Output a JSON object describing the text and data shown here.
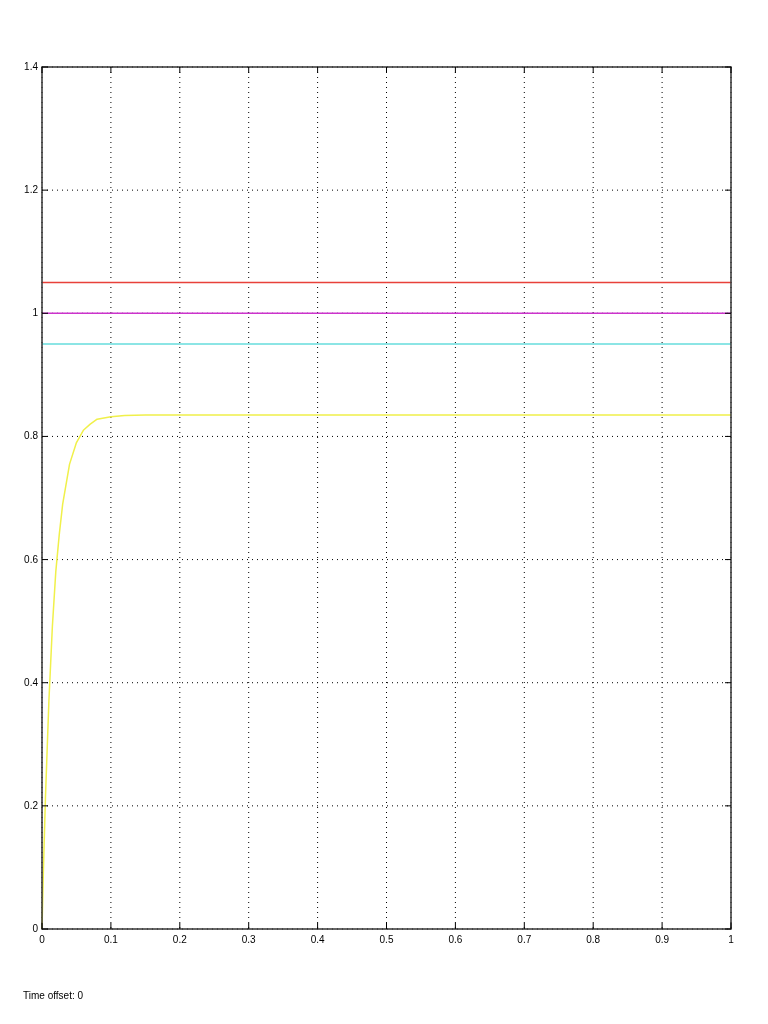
{
  "chart_data": {
    "type": "line",
    "xlim": [
      0,
      1
    ],
    "ylim": [
      0,
      1.4
    ],
    "xticks": [
      0,
      0.1,
      0.2,
      0.3,
      0.4,
      0.5,
      0.6,
      0.7,
      0.8,
      0.9,
      1
    ],
    "yticks": [
      0,
      0.2,
      0.4,
      0.6,
      0.8,
      1,
      1.2,
      1.4
    ],
    "grid": true,
    "line_style": "solid",
    "series": [
      {
        "color": "#e8413a",
        "x": [
          0,
          1
        ],
        "values": [
          1.05,
          1.05
        ]
      },
      {
        "color": "#cc33cc",
        "x": [
          0,
          1
        ],
        "values": [
          1,
          1
        ]
      },
      {
        "color": "#66dddd",
        "x": [
          0,
          1
        ],
        "values": [
          0.95,
          0.95
        ]
      },
      {
        "color": "#f0f04a",
        "x": [
          0,
          0.002,
          0.005,
          0.01,
          0.015,
          0.02,
          0.025,
          0.03,
          0.04,
          0.05,
          0.06,
          0.07,
          0.08,
          0.1,
          0.12,
          0.15,
          0.2,
          0.3,
          0.5,
          0.7,
          1
        ],
        "values": [
          0,
          0.093,
          0.213,
          0.37,
          0.49,
          0.58,
          0.64,
          0.69,
          0.755,
          0.79,
          0.81,
          0.82,
          0.828,
          0.832,
          0.834,
          0.835,
          0.835,
          0.835,
          0.835,
          0.835,
          0.835
        ]
      }
    ],
    "annotations": [
      "Time offset: 0"
    ]
  }
}
